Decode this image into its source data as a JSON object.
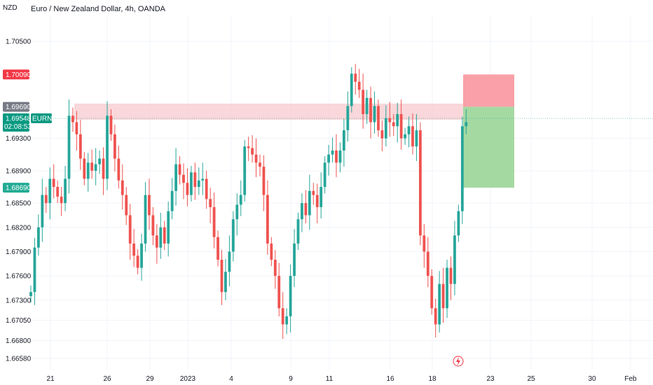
{
  "header": {
    "currency": "NZD",
    "title": "Euro / New Zealand Dollar, 4h, OANDA"
  },
  "price_tags": {
    "top_red": "1.70090",
    "gray": "1.69690",
    "current": "1.69548",
    "symbol": "EURNZD",
    "countdown": "02:08:53",
    "green": "1.68690"
  },
  "colors": {
    "up": "#26a69a",
    "down": "#ef5350",
    "zone": "#f7c9cd",
    "stop": "#f9a0a8",
    "target": "#a5d9a2",
    "gray_tag": "#787b86",
    "current_tag": "#089981",
    "red_tag": "#f23645",
    "green_tag": "#22ab94"
  },
  "chart_data": {
    "type": "candlestick",
    "title": "Euro / New Zealand Dollar, 4h, OANDA",
    "symbol": "EURNZD",
    "y_axis": {
      "side": "right",
      "ticks": [
        "1.70500",
        "1.69300",
        "1.68900",
        "1.68500",
        "1.68200",
        "1.67900",
        "1.67600",
        "1.67300",
        "1.67050",
        "1.66800",
        "1.66580"
      ],
      "range": [
        1.6643,
        1.7085
      ]
    },
    "x_axis": {
      "ticks": [
        "21",
        "26",
        "29",
        "2023",
        "4",
        "9",
        "11",
        "16",
        "18",
        "23",
        "25",
        "30",
        "Feb"
      ]
    },
    "grid": true,
    "resistance_zone": [
      1.6953,
      1.6973
    ],
    "position": {
      "entry": 1.6969,
      "stop": 1.7009,
      "target": 1.6869
    },
    "last_price": 1.69548,
    "candles_close": [
      1.674,
      1.6795,
      1.682,
      1.686,
      1.685,
      1.688,
      1.687,
      1.6858,
      1.685,
      1.688,
      1.6958,
      1.695,
      1.6935,
      1.6905,
      1.688,
      1.69,
      1.689,
      1.6898,
      1.6905,
      1.688,
      1.6958,
      1.6935,
      1.6905,
      1.6878,
      1.686,
      1.6835,
      1.68,
      1.6785,
      1.677,
      1.68,
      1.686,
      1.6835,
      1.681,
      1.6795,
      1.682,
      1.68,
      1.684,
      1.6865,
      1.6898,
      1.6885,
      1.6875,
      1.686,
      1.6888,
      1.687,
      1.6878,
      1.688,
      1.6855,
      1.6845,
      1.6808,
      1.678,
      1.674,
      1.6765,
      1.679,
      1.683,
      1.6848,
      1.686,
      1.692,
      1.6918,
      1.691,
      1.69,
      1.6895,
      1.686,
      1.68,
      1.678,
      1.676,
      1.672,
      1.67,
      1.671,
      1.676,
      1.68,
      1.683,
      1.685,
      1.6835,
      1.6865,
      1.686,
      1.6845,
      1.687,
      1.69,
      1.691,
      1.6915,
      1.69,
      1.6915,
      1.694,
      1.697,
      1.701,
      1.7,
      1.699,
      1.696,
      1.698,
      1.695,
      1.697,
      1.694,
      1.693,
      1.6955,
      1.695,
      1.6945,
      1.696,
      1.693,
      1.6935,
      1.6945,
      1.692,
      1.694,
      1.681,
      1.679,
      1.676,
      1.672,
      1.67,
      1.675,
      1.672,
      1.677,
      1.675,
      1.681,
      1.684,
      1.6945,
      1.695
    ]
  }
}
